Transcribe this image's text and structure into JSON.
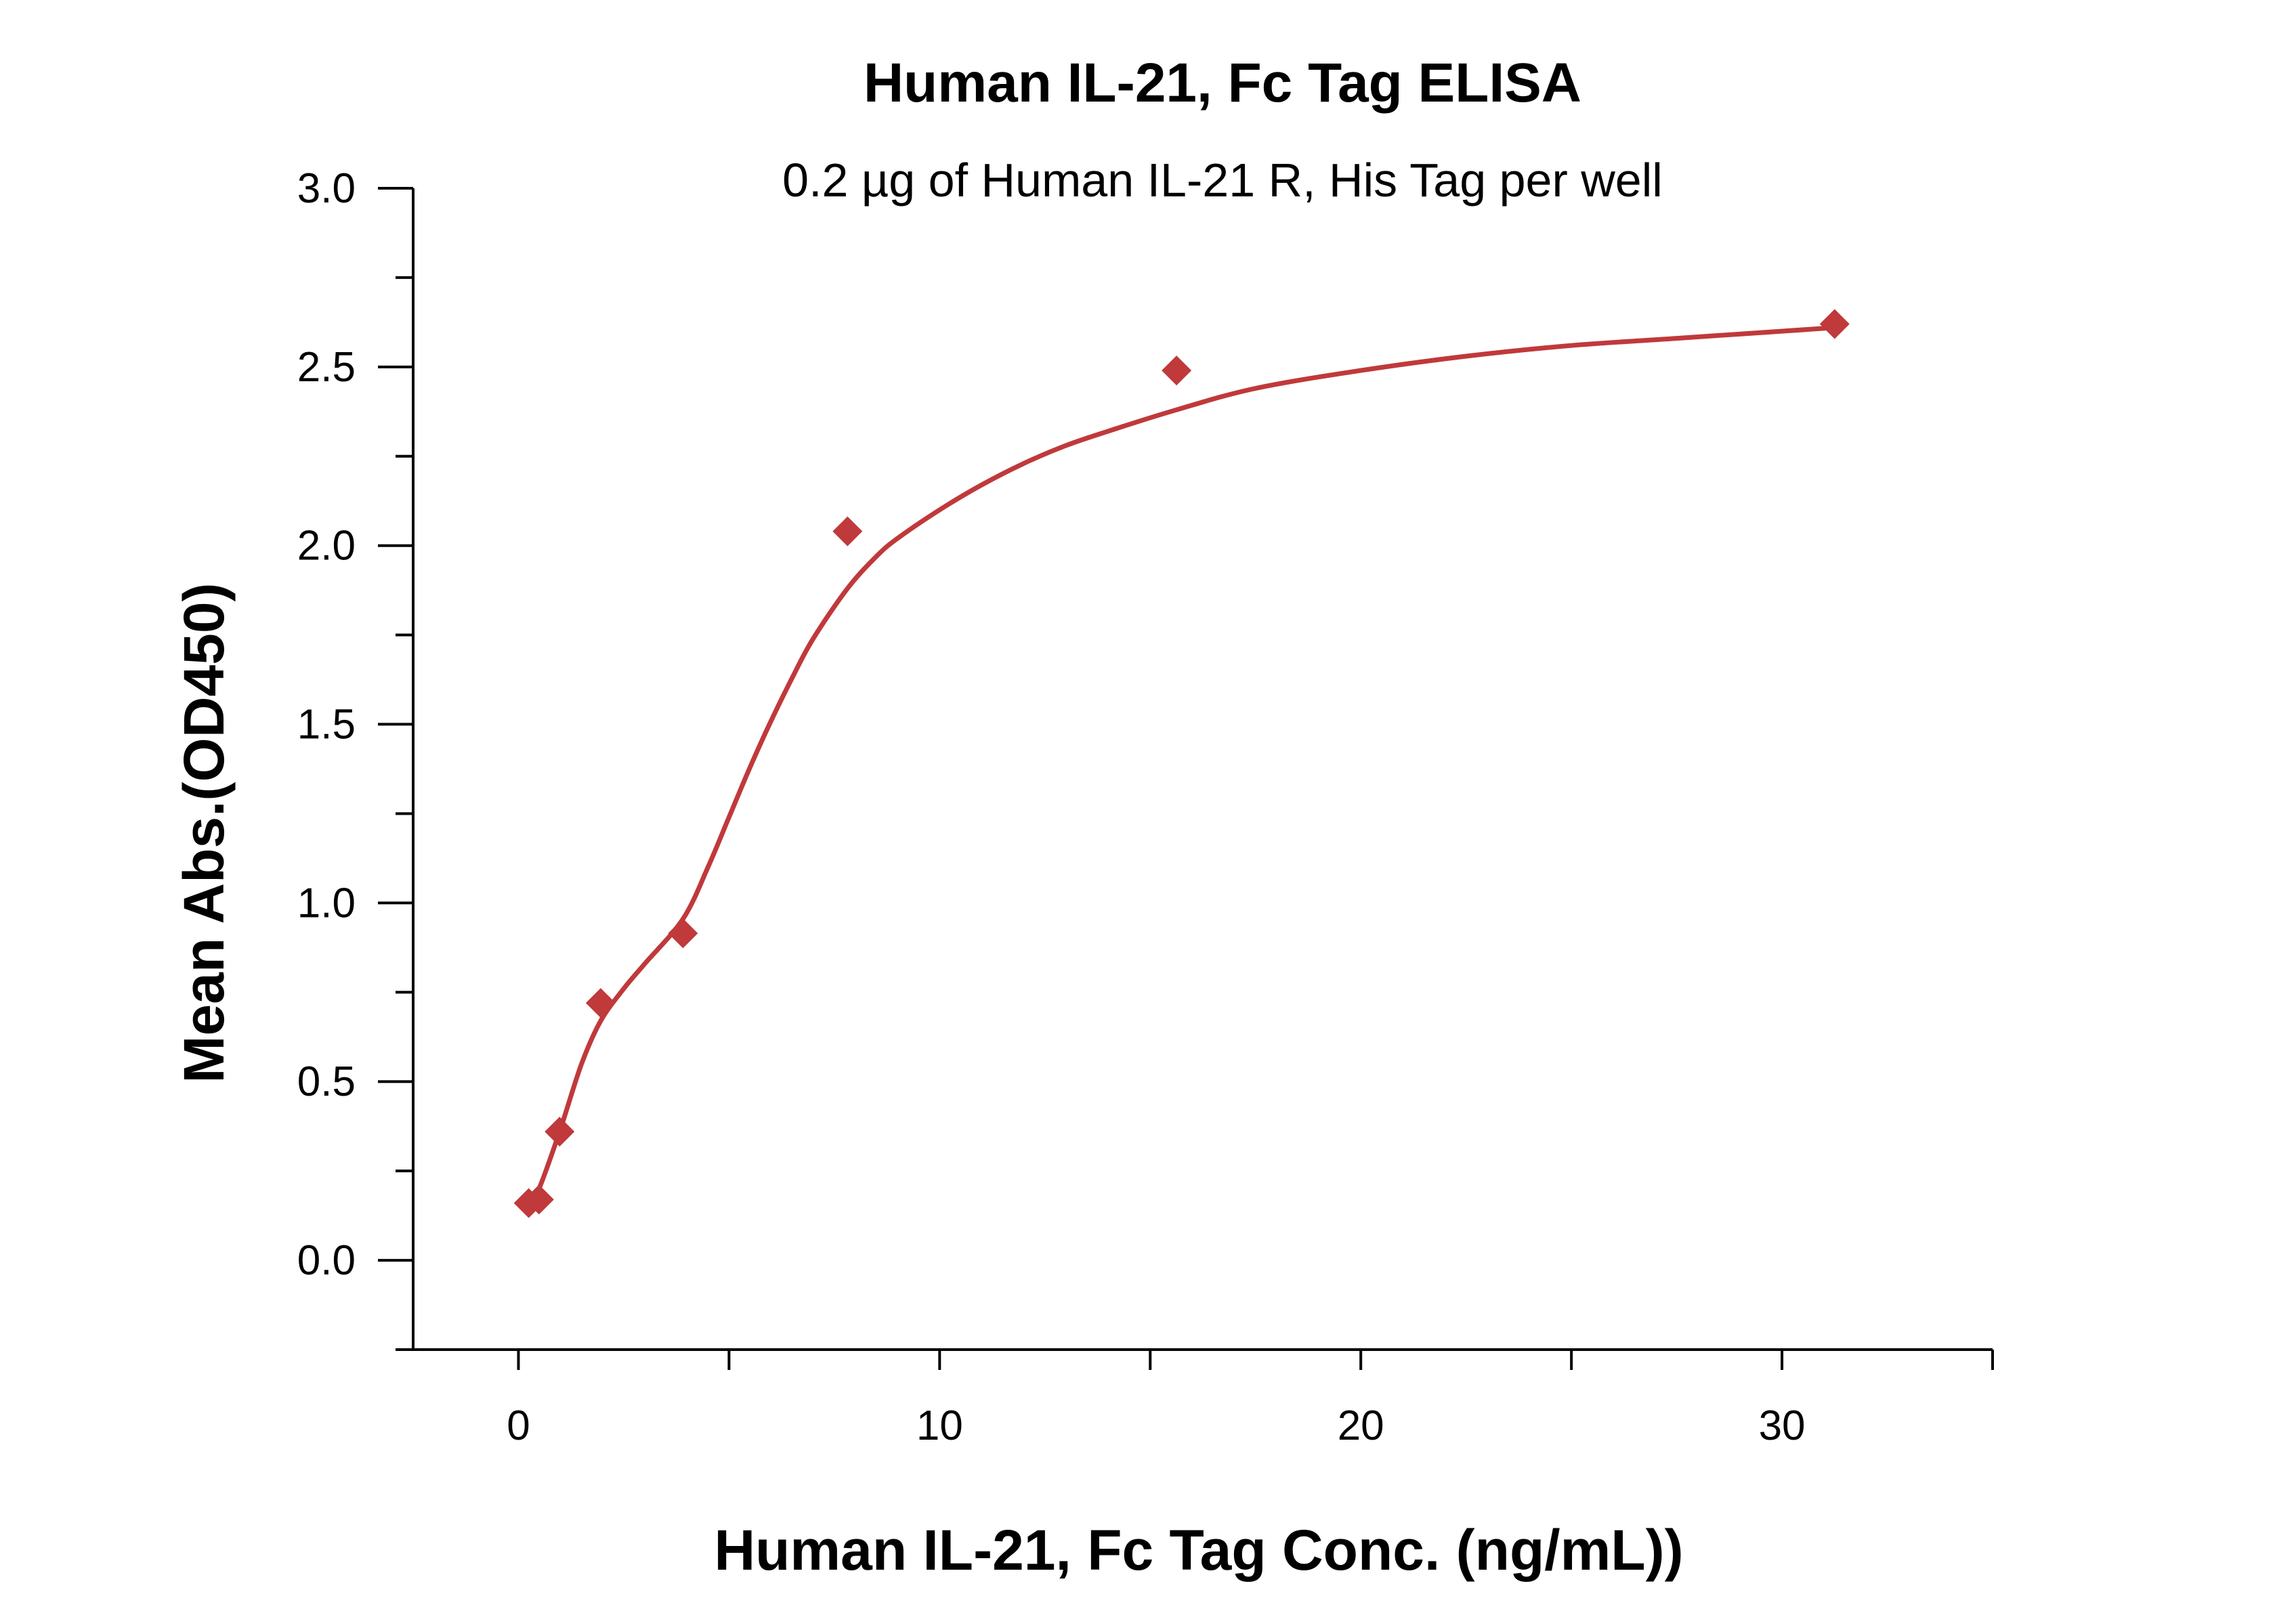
{
  "chart_data": {
    "type": "scatter",
    "title": "Human IL-21, Fc Tag ELISA",
    "subtitle": "0.2 µg of Human IL-21 R, His Tag per well",
    "xlabel": "Human IL-21, Fc Tag Conc. (ng/mL))",
    "ylabel": "Mean Abs.(OD450)",
    "xlim": [
      -2.5,
      35
    ],
    "ylim": [
      -0.25,
      3.0
    ],
    "x_ticks": [
      0,
      10,
      20,
      30
    ],
    "y_ticks": [
      0.0,
      0.5,
      1.0,
      1.5,
      2.0,
      2.5,
      3.0
    ],
    "x_tick_labels": [
      "0",
      "10",
      "20",
      "30"
    ],
    "y_tick_labels": [
      "0.0",
      "0.5",
      "1.0",
      "1.5",
      "2.0",
      "2.5",
      "3.0"
    ],
    "grid": false,
    "legend": "none",
    "series": [
      {
        "marker": "diamond",
        "color": "#c0393b",
        "x": [
          0.244,
          0.488,
          0.977,
          1.953,
          3.906,
          7.813,
          15.625,
          31.25
        ],
        "y": [
          0.16,
          0.17,
          0.36,
          0.72,
          0.915,
          2.04,
          2.49,
          2.62
        ],
        "fit_curve": {
          "x": [
            0.244,
            0.488,
            0.977,
            1.5,
            1.953,
            2.5,
            3.0,
            3.906,
            4.5,
            5.0,
            5.5,
            6.0,
            6.5,
            7.0,
            7.813,
            8.5,
            9.0,
            10.0,
            11.0,
            12.0,
            13.0,
            14.0,
            15.625,
            17.5,
            20.0,
            22.5,
            25.0,
            27.5,
            31.25
          ],
          "y": [
            0.16,
            0.2,
            0.36,
            0.55,
            0.67,
            0.76,
            0.83,
            0.955,
            1.1,
            1.24,
            1.38,
            1.51,
            1.63,
            1.74,
            1.88,
            1.97,
            2.02,
            2.1,
            2.17,
            2.23,
            2.28,
            2.32,
            2.38,
            2.44,
            2.49,
            2.53,
            2.56,
            2.58,
            2.61
          ]
        }
      }
    ]
  }
}
